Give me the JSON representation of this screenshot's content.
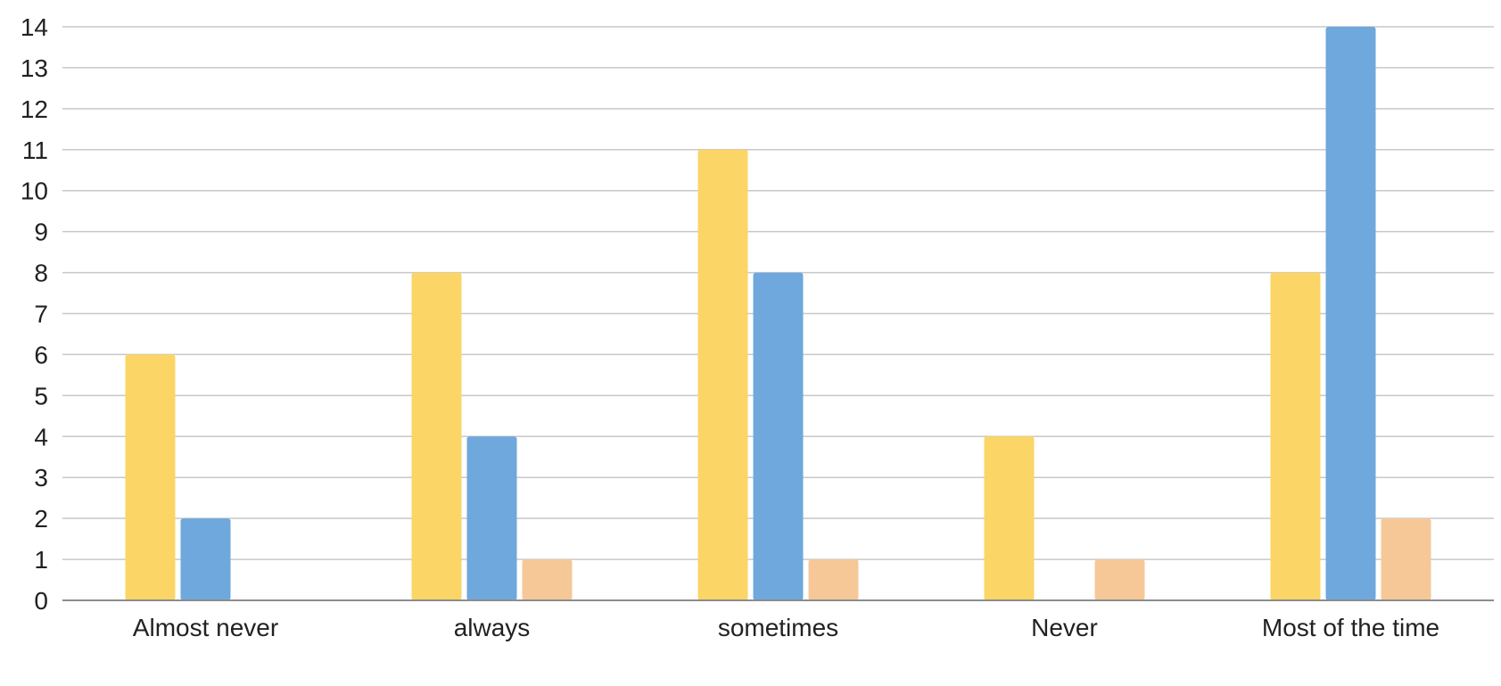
{
  "chart_data": {
    "type": "bar",
    "categories": [
      "Almost never",
      "always",
      "sometimes",
      "Never",
      "Most of the time"
    ],
    "series": [
      {
        "values": [
          6,
          8,
          11,
          4,
          8
        ],
        "color": "#fbd566"
      },
      {
        "values": [
          2,
          4,
          8,
          0,
          14
        ],
        "color": "#6ea8dc"
      },
      {
        "values": [
          0,
          1,
          1,
          1,
          2
        ],
        "color": "#f6c898"
      }
    ],
    "ylim": [
      0,
      14
    ],
    "yticks": [
      0,
      1,
      2,
      3,
      4,
      5,
      6,
      7,
      8,
      9,
      10,
      11,
      12,
      13,
      14
    ],
    "grid": true,
    "legend": "none"
  }
}
